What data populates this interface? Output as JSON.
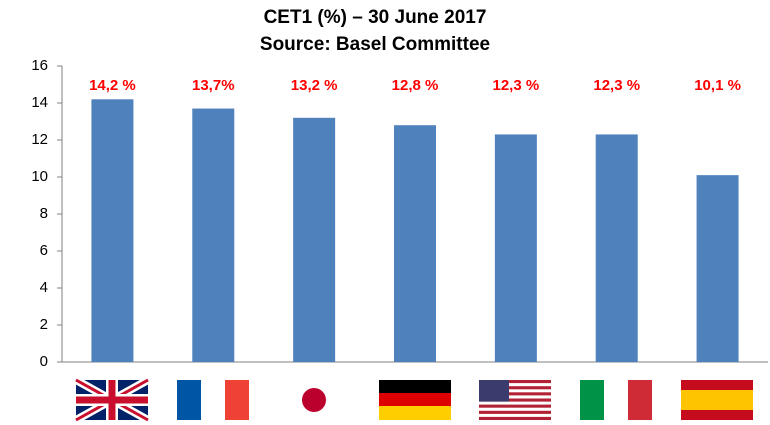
{
  "chart_data": {
    "type": "bar",
    "title": "CET1 (%) – 30 June 2017",
    "subtitle": "Source: Basel Committee",
    "categories": [
      null,
      null,
      null,
      null,
      null,
      null,
      null
    ],
    "values": [
      14.2,
      13.7,
      13.2,
      12.8,
      12.3,
      12.3,
      10.1
    ],
    "value_labels": [
      "14,2 %",
      "13,7%",
      "13,2 %",
      "12,8 %",
      "12,3 %",
      "12,3 %",
      "10,1 %"
    ],
    "color": "#4f81bd",
    "label_color": "#ff0000",
    "ylim": [
      0,
      16
    ],
    "yticks": [
      0,
      2,
      4,
      6,
      8,
      10,
      12,
      14,
      16
    ],
    "grid": false
  }
}
